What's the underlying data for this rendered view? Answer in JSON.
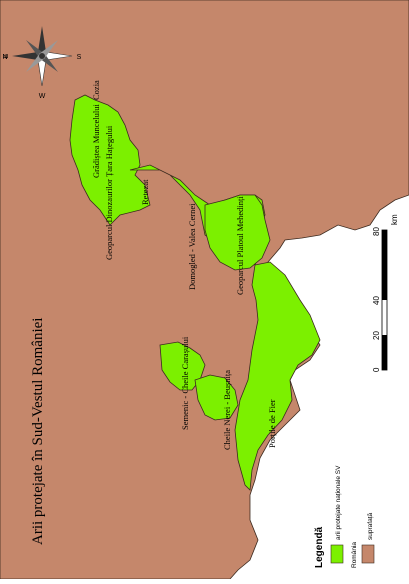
{
  "title": "Arii protejate în Sud-Vestul României",
  "compass": {
    "n": "N",
    "e": "E",
    "s": "S",
    "w": "W"
  },
  "areas": [
    "Cozia",
    "Grădiștea Muncelului",
    "Geoparcul Dinozaurilor Țara Hațegului",
    "Retezat",
    "Domogled - Valea Cernei",
    "Geoparcul Platoul Mehedinți",
    "Semenic - Cheile Carașului",
    "Cheile Nerei - Beușnița",
    "Porțile de Fier"
  ],
  "scale": {
    "ticks": [
      "0",
      "20",
      "40",
      "80"
    ],
    "unit": "km"
  },
  "legend": {
    "heading": "Legendă",
    "items": [
      {
        "label": "arii protejate naționale SV",
        "color": "#7cf000"
      },
      {
        "label": "România",
        "color": "#7cf000"
      },
      {
        "label": "suprafață",
        "color": "#c5876b"
      }
    ]
  },
  "colors": {
    "terrain": "#c5876b",
    "protected": "#7cf000",
    "border": "#3c2a1f"
  }
}
